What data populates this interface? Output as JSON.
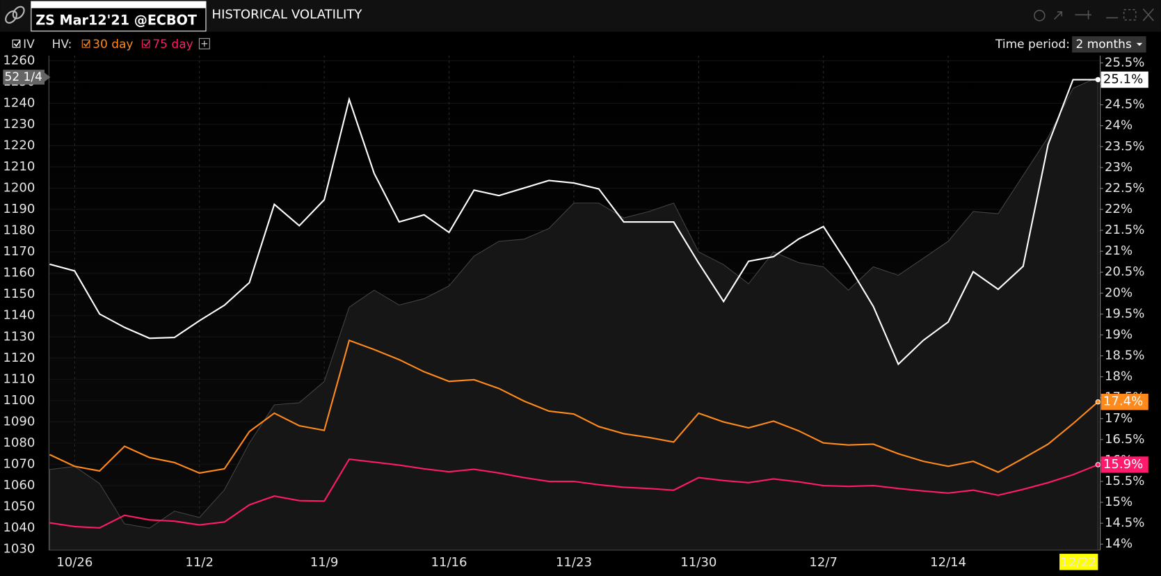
{
  "ui": {
    "symbol": "ZS Mar12'21 @ECBOT",
    "title": "HISTORICAL VOLATILITY",
    "hv_label": "HV:",
    "time_period_label": "Time period:",
    "time_period": "2 months",
    "price_tag": "52 1/4"
  },
  "chart_data": {
    "type": "line",
    "categories": [
      null,
      "10/26",
      null,
      null,
      null,
      null,
      "11/2",
      null,
      null,
      null,
      null,
      "11/9",
      null,
      null,
      null,
      null,
      "11/16",
      null,
      null,
      null,
      null,
      "11/23",
      null,
      null,
      null,
      null,
      "11/30",
      null,
      null,
      null,
      null,
      "12/7",
      null,
      null,
      null,
      null,
      "12/14",
      null,
      null,
      null,
      null,
      null,
      "12/22"
    ],
    "ylim": [
      1030,
      1260
    ],
    "yticks": [
      1030,
      1040,
      1050,
      1060,
      1070,
      1080,
      1090,
      1100,
      1110,
      1120,
      1130,
      1140,
      1150,
      1160,
      1170,
      1180,
      1190,
      1200,
      1210,
      1220,
      1230,
      1240,
      1250,
      1260
    ],
    "y2lim": [
      14,
      25.5
    ],
    "y2ticks": [
      {
        "value": 14,
        "label": "14%"
      },
      {
        "value": 14.5,
        "label": "14.5%"
      },
      {
        "value": 15,
        "label": "15%"
      },
      {
        "value": 15.5,
        "label": "15.5%"
      },
      {
        "value": 16,
        "label": "16%"
      },
      {
        "value": 16.5,
        "label": "16.5%"
      },
      {
        "value": 17,
        "label": "17%"
      },
      {
        "value": 17.5,
        "label": "17.5%"
      },
      {
        "value": 18,
        "label": "18%"
      },
      {
        "value": 18.5,
        "label": "18.5%"
      },
      {
        "value": 19,
        "label": "19%"
      },
      {
        "value": 19.5,
        "label": "19.5%"
      },
      {
        "value": 20,
        "label": "20%"
      },
      {
        "value": 20.5,
        "label": "20.5%"
      },
      {
        "value": 21,
        "label": "21%"
      },
      {
        "value": 21.5,
        "label": "21.5%"
      },
      {
        "value": 22,
        "label": "22%"
      },
      {
        "value": 22.5,
        "label": "22.5%"
      },
      {
        "value": 23,
        "label": "23%"
      },
      {
        "value": 23.5,
        "label": "23.5%"
      },
      {
        "value": 24,
        "label": "24%"
      },
      {
        "value": 24.5,
        "label": "24.5%"
      },
      {
        "value": 25,
        "label": "25%"
      },
      {
        "value": 25.5,
        "label": "25.5%"
      }
    ],
    "price": {
      "color": "#444444",
      "fill": "#161616",
      "values": [
        1067.6,
        1069,
        1061,
        1042,
        1040,
        1048,
        1045,
        1058,
        1080,
        1098,
        1099,
        1109,
        1144,
        1152,
        1145,
        1148,
        1154,
        1168,
        1175,
        1176,
        1181,
        1193,
        1193,
        1186,
        1189,
        1193,
        1170,
        1164,
        1155,
        1170,
        1165,
        1163,
        1152,
        1163,
        1159,
        1167,
        1175,
        1189,
        1188,
        1206,
        1224,
        1247,
        1252.25
      ]
    },
    "series": [
      {
        "name": "IV",
        "color": "#ffffff",
        "axis": "y2",
        "last_label": "25.1%",
        "values": [
          20.69,
          20.53,
          19.5,
          19.18,
          18.92,
          18.94,
          19.34,
          19.71,
          20.25,
          22.12,
          21.61,
          22.23,
          24.63,
          22.86,
          21.7,
          21.87,
          21.45,
          22.46,
          22.33,
          22.51,
          22.69,
          22.63,
          22.49,
          21.7,
          21.7,
          21.7,
          20.72,
          19.8,
          20.76,
          20.87,
          21.29,
          21.59,
          20.67,
          19.68,
          18.3,
          18.87,
          19.31,
          20.51,
          20.09,
          20.64,
          23.55,
          25.1,
          25.1
        ]
      },
      {
        "name": "30 day",
        "color": "#ff8a1c",
        "axis": "y2",
        "last_label": "17.4%",
        "values": [
          16.14,
          15.86,
          15.75,
          16.34,
          16.07,
          15.95,
          15.7,
          15.8,
          16.69,
          17.13,
          16.83,
          16.72,
          18.87,
          18.65,
          18.41,
          18.12,
          17.89,
          17.93,
          17.72,
          17.42,
          17.18,
          17.11,
          16.81,
          16.64,
          16.55,
          16.44,
          17.13,
          16.92,
          16.78,
          16.94,
          16.71,
          16.42,
          16.37,
          16.39,
          16.16,
          15.98,
          15.86,
          15.98,
          15.72,
          16.05,
          16.39,
          16.88,
          17.4
        ]
      },
      {
        "name": "75 day",
        "color": "#ff1a6c",
        "axis": "y2",
        "last_label": "15.9%",
        "values": [
          14.51,
          14.42,
          14.39,
          14.69,
          14.58,
          14.55,
          14.46,
          14.53,
          14.94,
          15.15,
          15.04,
          15.03,
          16.03,
          15.96,
          15.89,
          15.8,
          15.73,
          15.79,
          15.7,
          15.59,
          15.5,
          15.5,
          15.42,
          15.36,
          15.33,
          15.29,
          15.59,
          15.52,
          15.47,
          15.56,
          15.49,
          15.4,
          15.38,
          15.4,
          15.33,
          15.27,
          15.22,
          15.29,
          15.17,
          15.31,
          15.47,
          15.66,
          15.9
        ]
      }
    ]
  }
}
